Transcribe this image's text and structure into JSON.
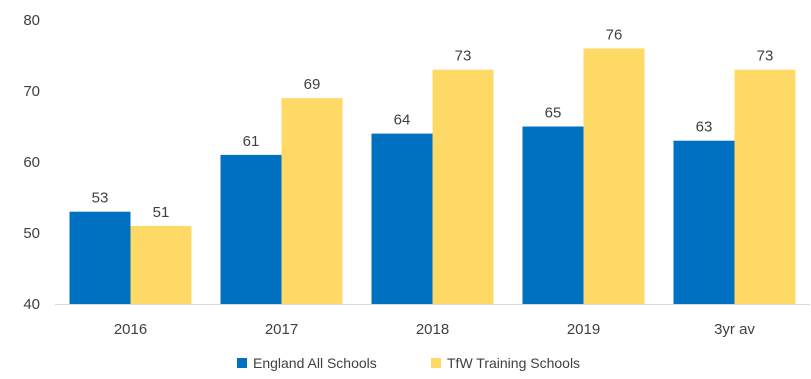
{
  "chart_data": {
    "type": "bar",
    "title": "",
    "xlabel": "",
    "ylabel": "",
    "categories": [
      "2016",
      "2017",
      "2018",
      "2019",
      "3yr av"
    ],
    "series": [
      {
        "name": "England All Schools",
        "values": [
          53,
          61,
          64,
          65,
          63
        ],
        "color": "#0070C0"
      },
      {
        "name": "TfW Training Schools",
        "values": [
          51,
          69,
          73,
          76,
          73
        ],
        "color": "#FFD966"
      }
    ],
    "ylim": [
      40,
      80
    ],
    "yticks": [
      40,
      50,
      60,
      70,
      80
    ],
    "grid": false,
    "legend_position": "bottom"
  }
}
